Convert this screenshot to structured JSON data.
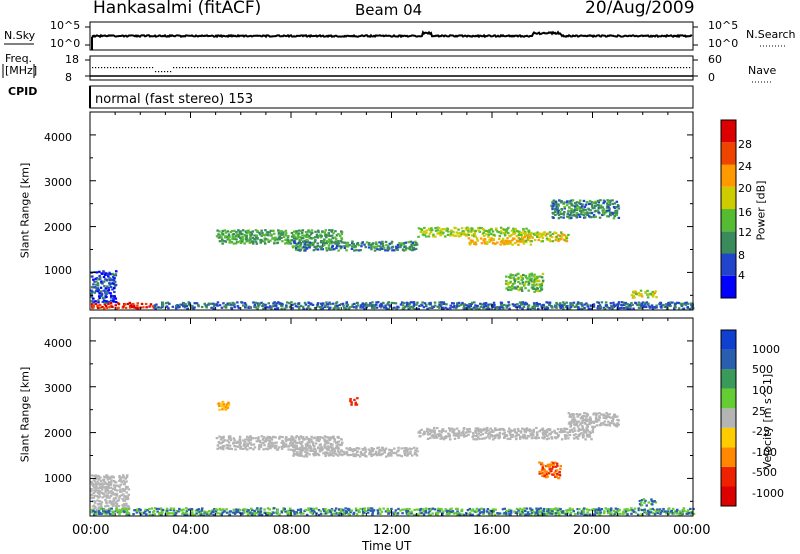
{
  "header": {
    "station": "Hankasalmi (fitACF)",
    "beam": "Beam 04",
    "date": "20/Aug/2009"
  },
  "panels": {
    "nsky_label": "N.Sky",
    "nsky_top": "10^5",
    "nsky_bottom": "10^0",
    "nsearch_label": "N.Search",
    "nsearch_top": "10^5",
    "nsearch_bottom": "10^0",
    "freq_label": "Freq.",
    "freq_unit": "[MHz]",
    "freq_top": "18",
    "freq_bottom": "8",
    "nave_label": "Nave",
    "nave_top": "60",
    "nave_bottom": "0",
    "cpid_label": "CPID",
    "cpid_value": "normal (fast stereo) 153"
  },
  "x_axis": {
    "title": "Time UT",
    "ticks": [
      "00:00",
      "04:00",
      "08:00",
      "12:00",
      "16:00",
      "20:00",
      "00:00"
    ]
  },
  "power_panel": {
    "ylabel": "Slant Range [km]",
    "yticks": [
      "1000",
      "2000",
      "3000",
      "4000"
    ],
    "colorbar_label": "Power [dB]",
    "colorbar_ticks": [
      "4",
      "8",
      "12",
      "16",
      "20",
      "24",
      "28"
    ],
    "colors": [
      "#0000ff",
      "#2244cc",
      "#3a8a5c",
      "#55bb33",
      "#cccc00",
      "#ff9900",
      "#ee4400",
      "#dd0000"
    ]
  },
  "velocity_panel": {
    "ylabel": "Slant Range [km]",
    "yticks": [
      "1000",
      "2000",
      "3000",
      "4000"
    ],
    "colorbar_label": "Velocity [m s^-1]",
    "colorbar_ticks": [
      "1000",
      "500",
      "100",
      "25",
      "-25",
      "-100",
      "-500",
      "-1000"
    ],
    "colors": [
      "#1040d0",
      "#2a5fb0",
      "#3a9a5a",
      "#66cc33",
      "#b4b4b4",
      "#ffcc00",
      "#ff8800",
      "#ee2200",
      "#dd0000"
    ]
  },
  "chart_data": {
    "type": "heatmap",
    "x_range_hours": [
      0,
      24
    ],
    "y_range_km": [
      180,
      4500
    ],
    "power_series": [
      {
        "start_h": 0.0,
        "end_h": 2.5,
        "range_km": 300,
        "thickness_km": 120,
        "power_db": 28
      },
      {
        "start_h": 0.0,
        "end_h": 1.0,
        "range_km": 700,
        "thickness_km": 700,
        "power_db": 6
      },
      {
        "start_h": 2.5,
        "end_h": 24.0,
        "range_km": 300,
        "thickness_km": 150,
        "power_db": 8
      },
      {
        "start_h": 5.0,
        "end_h": 10.0,
        "range_km": 1800,
        "thickness_km": 300,
        "power_db": 12
      },
      {
        "start_h": 8.0,
        "end_h": 13.0,
        "range_km": 1600,
        "thickness_km": 200,
        "power_db": 10
      },
      {
        "start_h": 13.0,
        "end_h": 17.5,
        "range_km": 1900,
        "thickness_km": 200,
        "power_db": 16
      },
      {
        "start_h": 15.0,
        "end_h": 17.5,
        "range_km": 1700,
        "thickness_km": 150,
        "power_db": 20
      },
      {
        "start_h": 17.0,
        "end_h": 19.0,
        "range_km": 1800,
        "thickness_km": 200,
        "power_db": 18
      },
      {
        "start_h": 18.3,
        "end_h": 21.0,
        "range_km": 2400,
        "thickness_km": 400,
        "power_db": 10
      },
      {
        "start_h": 16.5,
        "end_h": 18.0,
        "range_km": 800,
        "thickness_km": 400,
        "power_db": 14
      },
      {
        "start_h": 21.5,
        "end_h": 22.5,
        "range_km": 550,
        "thickness_km": 150,
        "power_db": 18
      }
    ],
    "velocity_series": [
      {
        "start_h": 0.0,
        "end_h": 1.5,
        "range_km": 700,
        "thickness_km": 800,
        "velocity": 0
      },
      {
        "start_h": 0.0,
        "end_h": 24.0,
        "range_km": 300,
        "thickness_km": 150,
        "velocity": 100
      },
      {
        "start_h": 5.0,
        "end_h": 10.0,
        "range_km": 1800,
        "thickness_km": 300,
        "velocity": 0
      },
      {
        "start_h": 8.0,
        "end_h": 13.0,
        "range_km": 1600,
        "thickness_km": 200,
        "velocity": 0
      },
      {
        "start_h": 13.0,
        "end_h": 20.0,
        "range_km": 2000,
        "thickness_km": 250,
        "velocity": 0
      },
      {
        "start_h": 19.0,
        "end_h": 21.0,
        "range_km": 2300,
        "thickness_km": 300,
        "velocity": 0
      },
      {
        "start_h": 17.8,
        "end_h": 18.7,
        "range_km": 1200,
        "thickness_km": 350,
        "velocity": -500
      },
      {
        "start_h": 5.0,
        "end_h": 5.5,
        "range_km": 2600,
        "thickness_km": 200,
        "velocity": -100
      },
      {
        "start_h": 10.3,
        "end_h": 10.6,
        "range_km": 2700,
        "thickness_km": 150,
        "velocity": -1000
      },
      {
        "start_h": 21.8,
        "end_h": 22.5,
        "range_km": 500,
        "thickness_km": 150,
        "velocity": 100
      }
    ]
  }
}
